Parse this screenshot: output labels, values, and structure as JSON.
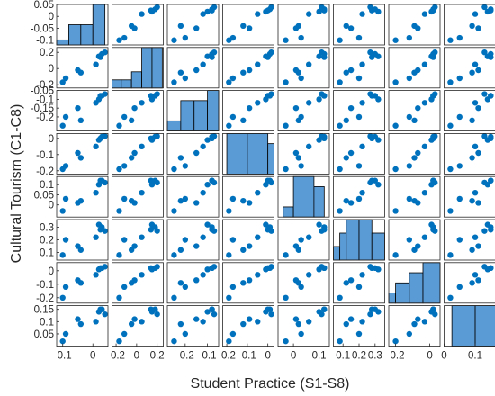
{
  "chart_data": {
    "type": "scatter-matrix",
    "xlabel": "Student Practice (S1-S8)",
    "ylabel": "Cultural Tourism (C1-C8)",
    "point_color": "#0072BD",
    "hist_fill": "#5B9BD5",
    "variables": [
      {
        "lim": [
          -0.12,
          0.05
        ],
        "ticks": [
          0.05,
          0,
          -0.05,
          -0.1
        ],
        "tick_labels": [
          "0.05",
          "0",
          "-0.05",
          "-0.1"
        ],
        "xticks": [
          -0.1,
          0
        ],
        "xtick_labels": [
          "-0.1",
          "0"
        ],
        "values": [
          0.03,
          0.04,
          0.02,
          -0.04,
          -0.1,
          -0.09,
          0.01,
          0.025,
          -0.05
        ]
      },
      {
        "lim": [
          -0.24,
          0.26
        ],
        "ticks": [
          0.2,
          0,
          -0.2
        ],
        "tick_labels": [
          "0.2",
          "0",
          "-0.2"
        ],
        "xticks": [
          -0.2,
          0,
          0.2
        ],
        "xtick_labels": [
          "-0.2",
          "0",
          "0.2"
        ],
        "values": [
          0.18,
          0.2,
          0.15,
          -0.05,
          -0.17,
          -0.12,
          0.05,
          0.14,
          -0.02
        ]
      },
      {
        "lim": [
          -0.28,
          -0.05
        ],
        "ticks": [
          -0.05,
          -0.1,
          -0.15,
          -0.2
        ],
        "tick_labels": [
          "-0.05",
          "-0.1",
          "-0.15",
          "-0.2"
        ],
        "xticks": [
          -0.2,
          -0.1
        ],
        "xtick_labels": [
          "-0.2",
          "-0.1"
        ],
        "values": [
          -0.08,
          -0.07,
          -0.1,
          -0.22,
          -0.25,
          -0.2,
          -0.12,
          -0.08,
          -0.15
        ]
      },
      {
        "lim": [
          -0.22,
          0.03
        ],
        "ticks": [
          0,
          -0.1,
          -0.2
        ],
        "tick_labels": [
          "0",
          "-0.1",
          "-0.2"
        ],
        "xticks": [
          -0.2,
          -0.1,
          0
        ],
        "xtick_labels": [
          "-0.2",
          "-0.1",
          "0"
        ],
        "values": [
          0.01,
          0.02,
          -0.01,
          -0.12,
          -0.19,
          -0.17,
          -0.05,
          0,
          -0.09
        ]
      },
      {
        "lim": [
          -0.06,
          0.14
        ],
        "ticks": [
          0.1,
          0.05,
          0
        ],
        "tick_labels": [
          "0.1",
          "0.05",
          "0"
        ],
        "xticks": [
          0,
          0.1
        ],
        "xtick_labels": [
          "0",
          "0.1"
        ],
        "values": [
          0.12,
          0.11,
          0.1,
          0.02,
          -0.03,
          0.03,
          0.06,
          0.12,
          0.01
        ]
      },
      {
        "lim": [
          0.04,
          0.36
        ],
        "ticks": [
          0.3,
          0.2,
          0.1
        ],
        "tick_labels": [
          "0.3",
          "0.2",
          "0.1"
        ],
        "xticks": [
          0.1,
          0.2,
          0.3
        ],
        "xtick_labels": [
          "0.1",
          "0.2",
          "0.3"
        ],
        "values": [
          0.3,
          0.27,
          0.32,
          0.12,
          0.08,
          0.2,
          0.22,
          0.28,
          0.15
        ]
      },
      {
        "lim": [
          -0.24,
          0.06
        ],
        "ticks": [
          0,
          -0.1,
          -0.2
        ],
        "tick_labels": [
          "0",
          "-0.1",
          "-0.2"
        ],
        "xticks": [
          -0.2,
          0
        ],
        "xtick_labels": [
          "-0.2",
          "0"
        ],
        "values": [
          0.02,
          0.03,
          0.01,
          -0.09,
          -0.2,
          -0.12,
          -0.03,
          0.02,
          -0.07
        ]
      },
      {
        "lim": [
          0,
          0.165
        ],
        "ticks": [
          0.15,
          0.1,
          0.05
        ],
        "tick_labels": [
          "0.15",
          "0.1",
          "0.05"
        ],
        "xticks": [
          0,
          0.1
        ],
        "xtick_labels": [
          "0",
          "0.1"
        ],
        "values": [
          0.15,
          0.13,
          0.14,
          0.09,
          0.02,
          0.05,
          0.1,
          0.15,
          0.11
        ]
      }
    ],
    "histograms": [
      {
        "edges": [
          -0.12,
          -0.08,
          -0.04,
          0,
          0.04
        ],
        "counts": [
          1,
          4,
          4,
          8
        ]
      },
      {
        "edges": [
          -0.25,
          -0.15,
          -0.05,
          0.05,
          0.15,
          0.25
        ],
        "counts": [
          1,
          1,
          2,
          5,
          5
        ]
      },
      {
        "edges": [
          -0.28,
          -0.22,
          -0.16,
          -0.1,
          -0.04
        ],
        "counts": [
          1,
          3,
          3,
          4
        ]
      },
      {
        "edges": [
          -0.22,
          -0.2,
          -0.1,
          0,
          0.03
        ],
        "counts": [
          0,
          4,
          4,
          3
        ]
      },
      {
        "edges": [
          -0.06,
          -0.04,
          0,
          0.08,
          0.12,
          0.14
        ],
        "counts": [
          0,
          1,
          4,
          3,
          0
        ]
      },
      {
        "edges": [
          0.04,
          0.08,
          0.12,
          0.2,
          0.28,
          0.36
        ],
        "counts": [
          1,
          2,
          3,
          3,
          2
        ]
      },
      {
        "edges": [
          -0.24,
          -0.2,
          -0.12,
          -0.04,
          0.06
        ],
        "counts": [
          1,
          2,
          3,
          4
        ]
      },
      {
        "edges": [
          0,
          0.025,
          0.1,
          0.165
        ],
        "counts": [
          0,
          4,
          4
        ]
      }
    ]
  }
}
